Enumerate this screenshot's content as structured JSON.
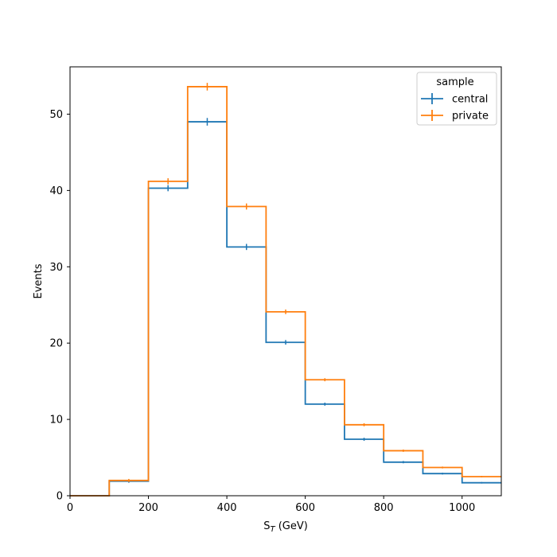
{
  "chart_data": {
    "type": "step-histogram",
    "xlabel_main": "S",
    "xlabel_sub": "T",
    "xlabel_unit": " (GeV)",
    "ylabel": "Events",
    "xlim": [
      0,
      1100
    ],
    "ylim": [
      0,
      56.2
    ],
    "xticks": [
      0,
      200,
      400,
      600,
      800,
      1000
    ],
    "yticks": [
      0,
      10,
      20,
      30,
      40,
      50
    ],
    "bin_edges": [
      0,
      100,
      200,
      300,
      400,
      500,
      600,
      700,
      800,
      900,
      1000,
      1100
    ],
    "grid": false,
    "legend": {
      "title": "sample",
      "position": "top-right"
    },
    "series": [
      {
        "name": "central",
        "color": "#1f77b4",
        "values": [
          0,
          1.9,
          40.3,
          49.0,
          32.6,
          20.1,
          12.0,
          7.4,
          4.4,
          2.9,
          1.7
        ],
        "errors": [
          0,
          0.2,
          0.4,
          0.5,
          0.4,
          0.3,
          0.2,
          0.2,
          0.15,
          0.12,
          0.1
        ]
      },
      {
        "name": "private",
        "color": "#ff7f0e",
        "values": [
          0,
          2.0,
          41.2,
          53.6,
          37.9,
          24.1,
          15.2,
          9.3,
          5.9,
          3.7,
          2.5
        ],
        "errors": [
          0,
          0.2,
          0.4,
          0.5,
          0.4,
          0.3,
          0.2,
          0.2,
          0.15,
          0.12,
          0.1
        ]
      }
    ]
  }
}
